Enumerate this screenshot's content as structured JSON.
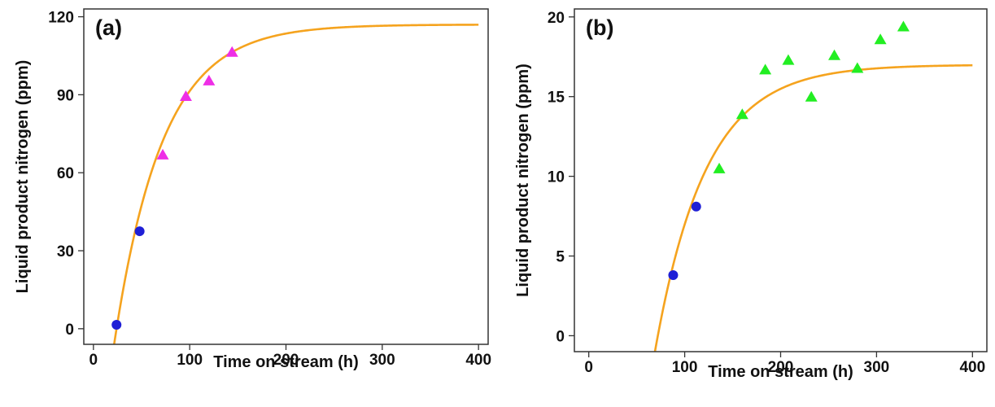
{
  "chart_data": [
    {
      "type": "scatter",
      "panel_label": "(a)",
      "xlabel": "Time on stream (h)",
      "ylabel": "Liquid product nitrogen (ppm)",
      "xlim": [
        -10,
        410
      ],
      "ylim": [
        -6,
        123
      ],
      "x_ticks": [
        0,
        100,
        200,
        300,
        400
      ],
      "y_ticks": [
        0,
        30,
        60,
        90,
        120
      ],
      "grid": false,
      "series": [
        {
          "marker": "circle",
          "color": "#1f1fd6",
          "points": [
            [
              24,
              1.5
            ],
            [
              48,
              37.5
            ]
          ]
        },
        {
          "marker": "triangle",
          "color": "#ee2ee6",
          "points": [
            [
              72,
              67
            ],
            [
              96,
              89.5
            ],
            [
              120,
              95.5
            ],
            [
              144,
              106.5
            ]
          ]
        },
        {
          "marker": "line",
          "color": "#f5a31e",
          "fit": {
            "asymptote": 117,
            "rate": 0.02,
            "t0": 24
          }
        }
      ]
    },
    {
      "type": "scatter",
      "panel_label": "(b)",
      "xlabel": "Time on stream (h)",
      "ylabel": "Liquid product nitrogen (ppm)",
      "xlim": [
        -15,
        415
      ],
      "ylim": [
        -1,
        20.5
      ],
      "x_ticks": [
        0,
        100,
        200,
        300,
        400
      ],
      "y_ticks": [
        0,
        5,
        10,
        15,
        20
      ],
      "grid": false,
      "series": [
        {
          "marker": "circle",
          "color": "#1f1fd6",
          "points": [
            [
              88,
              3.8
            ],
            [
              112,
              8.1
            ]
          ]
        },
        {
          "marker": "triangle",
          "color": "#22ee22",
          "points": [
            [
              136,
              10.5
            ],
            [
              160,
              13.9
            ],
            [
              184,
              16.7
            ],
            [
              208,
              17.3
            ],
            [
              232,
              15.0
            ],
            [
              256,
              17.6
            ],
            [
              280,
              16.8
            ],
            [
              304,
              18.6
            ],
            [
              328,
              19.4
            ]
          ]
        },
        {
          "marker": "line",
          "color": "#f5a31e",
          "fit": {
            "asymptote": 17,
            "rate": 0.0189,
            "t0": 72
          }
        }
      ]
    }
  ]
}
